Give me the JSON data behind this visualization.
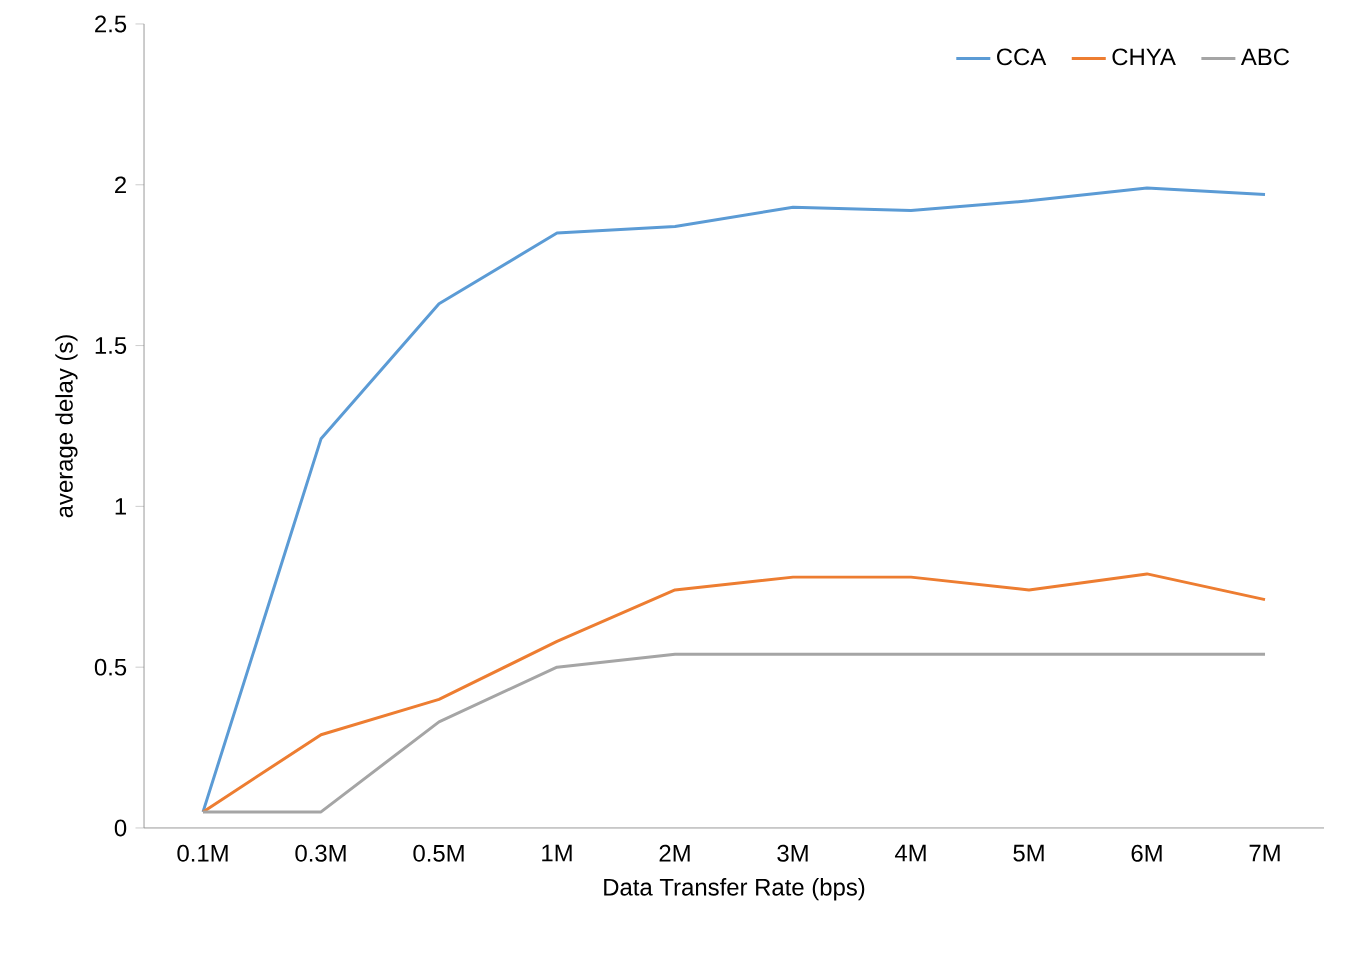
{
  "chart_data": {
    "type": "line",
    "xlabel": "Data Transfer Rate (bps)",
    "ylabel": "average delay (s)",
    "categories": [
      "0.1M",
      "0.3M",
      "0.5M",
      "1M",
      "2M",
      "3M",
      "4M",
      "5M",
      "6M",
      "7M"
    ],
    "series": [
      {
        "name": "CCA",
        "color": "#5b9bd5",
        "values": [
          0.05,
          1.21,
          1.63,
          1.85,
          1.87,
          1.93,
          1.92,
          1.95,
          1.99,
          1.97
        ]
      },
      {
        "name": "CHYA",
        "color": "#ed7d31",
        "values": [
          0.05,
          0.29,
          0.4,
          0.58,
          0.74,
          0.78,
          0.78,
          0.74,
          0.79,
          0.71
        ]
      },
      {
        "name": "ABC",
        "color": "#a5a5a5",
        "values": [
          0.05,
          0.05,
          0.33,
          0.5,
          0.54,
          0.54,
          0.54,
          0.54,
          0.54,
          0.54
        ]
      }
    ],
    "ylim": [
      0,
      2.5
    ],
    "yticks": [
      0,
      0.5,
      1,
      1.5,
      2,
      2.5
    ],
    "grid": false,
    "legend": "top right",
    "marker": "none",
    "line_style": "solid"
  }
}
